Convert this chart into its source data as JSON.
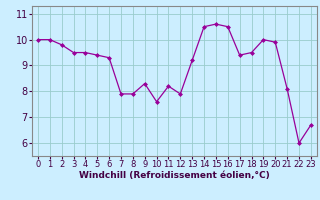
{
  "x": [
    0,
    1,
    2,
    3,
    4,
    5,
    6,
    7,
    8,
    9,
    10,
    11,
    12,
    13,
    14,
    15,
    16,
    17,
    18,
    19,
    20,
    21,
    22,
    23
  ],
  "y": [
    10.0,
    10.0,
    9.8,
    9.5,
    9.5,
    9.4,
    9.3,
    7.9,
    7.9,
    8.3,
    7.6,
    8.2,
    7.9,
    9.2,
    10.5,
    10.6,
    10.5,
    9.4,
    9.5,
    10.0,
    9.9,
    8.1,
    6.0,
    6.7
  ],
  "line_color": "#990099",
  "marker": "D",
  "marker_size": 2,
  "bg_color": "#cceeff",
  "grid_color": "#99cccc",
  "xlabel": "Windchill (Refroidissement éolien,°C)",
  "xlabel_fontsize": 6.5,
  "tick_fontsize": 6,
  "ylim": [
    5.5,
    11.3
  ],
  "xlim": [
    -0.5,
    23.5
  ],
  "yticks": [
    6,
    7,
    8,
    9,
    10,
    11
  ],
  "xticks": [
    0,
    1,
    2,
    3,
    4,
    5,
    6,
    7,
    8,
    9,
    10,
    11,
    12,
    13,
    14,
    15,
    16,
    17,
    18,
    19,
    20,
    21,
    22,
    23
  ]
}
